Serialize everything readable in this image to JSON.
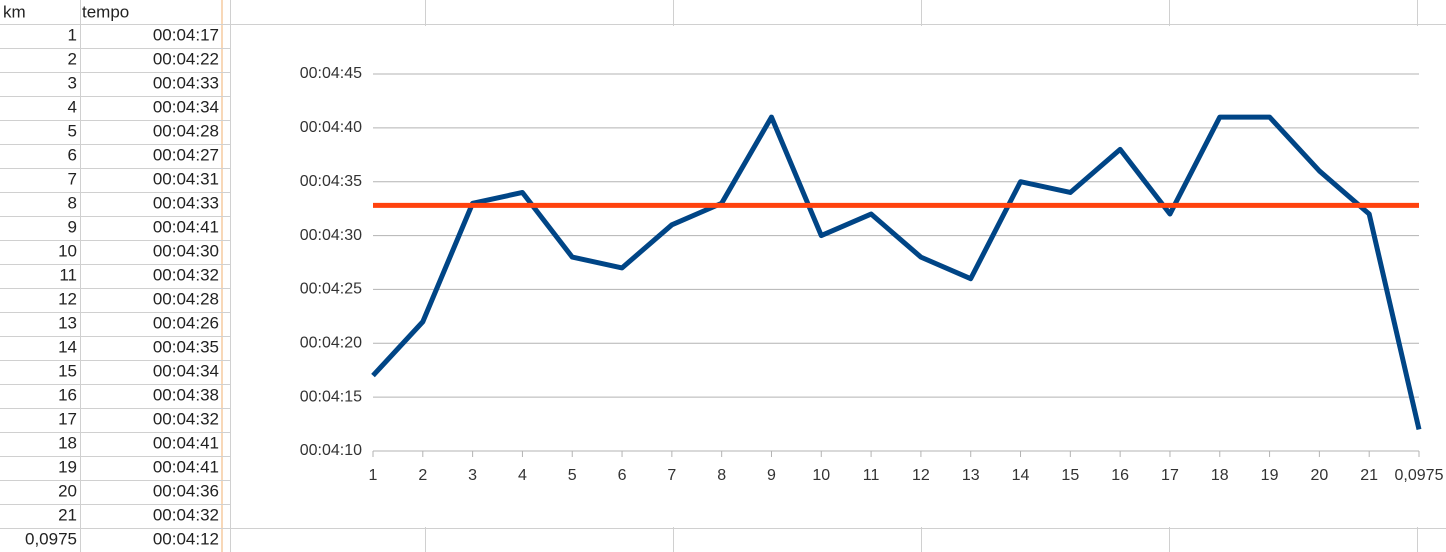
{
  "table": {
    "header": [
      "km",
      "tempo"
    ],
    "rows": [
      [
        "1",
        "00:04:17"
      ],
      [
        "2",
        "00:04:22"
      ],
      [
        "3",
        "00:04:33"
      ],
      [
        "4",
        "00:04:34"
      ],
      [
        "5",
        "00:04:28"
      ],
      [
        "6",
        "00:04:27"
      ],
      [
        "7",
        "00:04:31"
      ],
      [
        "8",
        "00:04:33"
      ],
      [
        "9",
        "00:04:41"
      ],
      [
        "10",
        "00:04:30"
      ],
      [
        "11",
        "00:04:32"
      ],
      [
        "12",
        "00:04:28"
      ],
      [
        "13",
        "00:04:26"
      ],
      [
        "14",
        "00:04:35"
      ],
      [
        "15",
        "00:04:34"
      ],
      [
        "16",
        "00:04:38"
      ],
      [
        "17",
        "00:04:32"
      ],
      [
        "18",
        "00:04:41"
      ],
      [
        "19",
        "00:04:41"
      ],
      [
        "20",
        "00:04:36"
      ],
      [
        "21",
        "00:04:32"
      ],
      [
        "0,0975",
        "00:04:12"
      ]
    ]
  },
  "chart_data": {
    "type": "line",
    "categories": [
      "1",
      "2",
      "3",
      "4",
      "5",
      "6",
      "7",
      "8",
      "9",
      "10",
      "11",
      "12",
      "13",
      "14",
      "15",
      "16",
      "17",
      "18",
      "19",
      "20",
      "21",
      "0,0975"
    ],
    "series": [
      {
        "color": "#004586",
        "values": [
          257,
          262,
          273,
          274,
          268,
          267,
          271,
          273,
          281,
          270,
          272,
          268,
          266,
          275,
          274,
          278,
          272,
          281,
          281,
          276,
          272,
          252
        ]
      },
      {
        "color": "#ff420e",
        "values": [
          272.8,
          272.8,
          272.8,
          272.8,
          272.8,
          272.8,
          272.8,
          272.8,
          272.8,
          272.8,
          272.8,
          272.8,
          272.8,
          272.8,
          272.8,
          272.8,
          272.8,
          272.8,
          272.8,
          272.8,
          272.8,
          272.8
        ]
      }
    ],
    "ylim": [
      250,
      285
    ],
    "yticks": [
      {
        "value": 250,
        "label": "00:04:10"
      },
      {
        "value": 255,
        "label": "00:04:15"
      },
      {
        "value": 260,
        "label": "00:04:20"
      },
      {
        "value": 265,
        "label": "00:04:25"
      },
      {
        "value": 270,
        "label": "00:04:30"
      },
      {
        "value": 275,
        "label": "00:04:35"
      },
      {
        "value": 280,
        "label": "00:04:40"
      },
      {
        "value": 285,
        "label": "00:04:45"
      }
    ],
    "grid": true
  }
}
